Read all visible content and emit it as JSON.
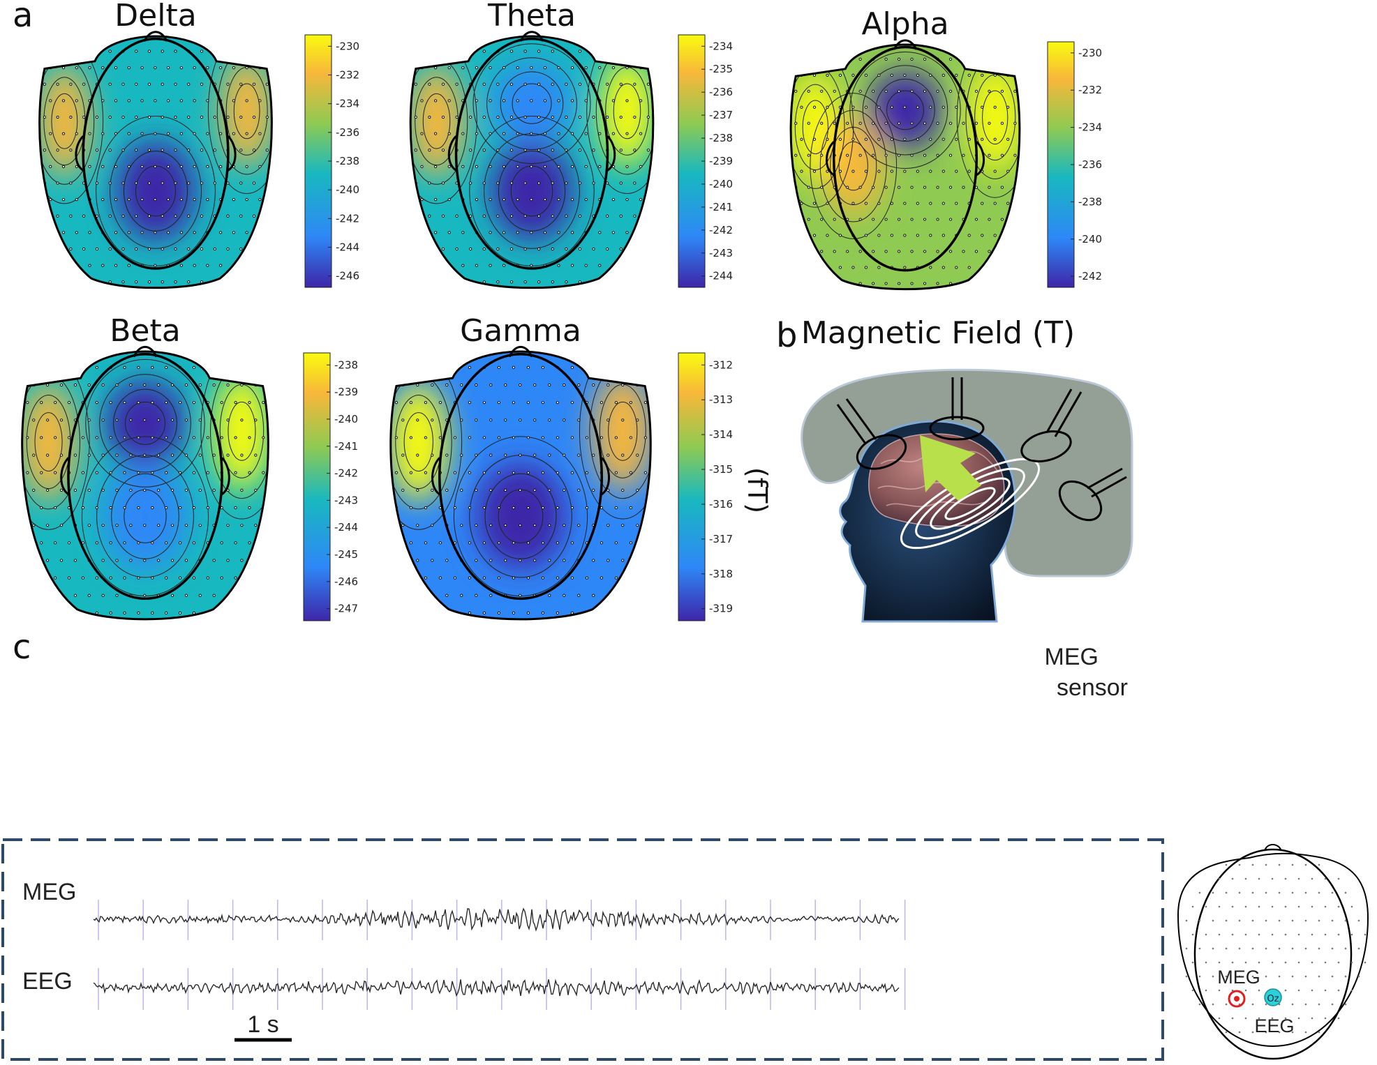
{
  "panel_labels": {
    "a": "a",
    "b": "b",
    "c": "c"
  },
  "colormap": [
    "#3e26a8",
    "#2e87f7",
    "#18b8c0",
    "#8fca52",
    "#f8b73a",
    "#f9fb0e"
  ],
  "unit_label": "(fT)",
  "chart_data": [
    {
      "type": "heatmap",
      "title": "Delta",
      "cbar_ticks": [
        "-230",
        "-232",
        "-234",
        "-236",
        "-238",
        "-240",
        "-242",
        "-244",
        "-246"
      ],
      "hotspots": [
        {
          "region": "parietal-center",
          "level": "min"
        },
        {
          "region": "temporal-left",
          "level": "high"
        },
        {
          "region": "temporal-right",
          "level": "high"
        }
      ]
    },
    {
      "type": "heatmap",
      "title": "Theta",
      "cbar_ticks": [
        "-234",
        "-235",
        "-236",
        "-237",
        "-238",
        "-239",
        "-240",
        "-241",
        "-242",
        "-243",
        "-244"
      ],
      "hotspots": [
        {
          "region": "parietal-center",
          "level": "min"
        },
        {
          "region": "frontal-center",
          "level": "low"
        },
        {
          "region": "temporal-right",
          "level": "max"
        },
        {
          "region": "temporal-left",
          "level": "high"
        }
      ]
    },
    {
      "type": "heatmap",
      "title": "Alpha",
      "cbar_ticks": [
        "-230",
        "-232",
        "-234",
        "-236",
        "-238",
        "-240",
        "-242"
      ],
      "hotspots": [
        {
          "region": "frontal-center",
          "level": "min"
        },
        {
          "region": "temporal-left",
          "level": "max"
        },
        {
          "region": "temporal-right",
          "level": "max"
        },
        {
          "region": "central",
          "level": "high"
        }
      ]
    },
    {
      "type": "heatmap",
      "title": "Beta",
      "cbar_ticks": [
        "-238",
        "-239",
        "-240",
        "-241",
        "-242",
        "-243",
        "-244",
        "-245",
        "-246",
        "-247"
      ],
      "hotspots": [
        {
          "region": "frontal-center",
          "level": "min"
        },
        {
          "region": "parietal-center",
          "level": "low"
        },
        {
          "region": "temporal-right",
          "level": "max"
        },
        {
          "region": "temporal-left",
          "level": "high"
        }
      ]
    },
    {
      "type": "heatmap",
      "title": "Gamma",
      "cbar_ticks": [
        "-312",
        "-313",
        "-314",
        "-315",
        "-316",
        "-317",
        "-318",
        "-319"
      ],
      "hotspots": [
        {
          "region": "parietal-center",
          "level": "min"
        },
        {
          "region": "temporal-left",
          "level": "max"
        },
        {
          "region": "temporal-right",
          "level": "high"
        }
      ]
    }
  ],
  "panel_b": {
    "title": "Magnetic Field (T)",
    "sensor_label_1": "MEG",
    "sensor_label_2": "sensor"
  },
  "panel_c": {
    "trace_labels": [
      "MEG",
      "EEG"
    ],
    "scale_bar_label": "1 s",
    "sensor_map": {
      "meg_label": "MEG",
      "eeg_label": "EEG",
      "electrode_label": "Oz"
    }
  }
}
